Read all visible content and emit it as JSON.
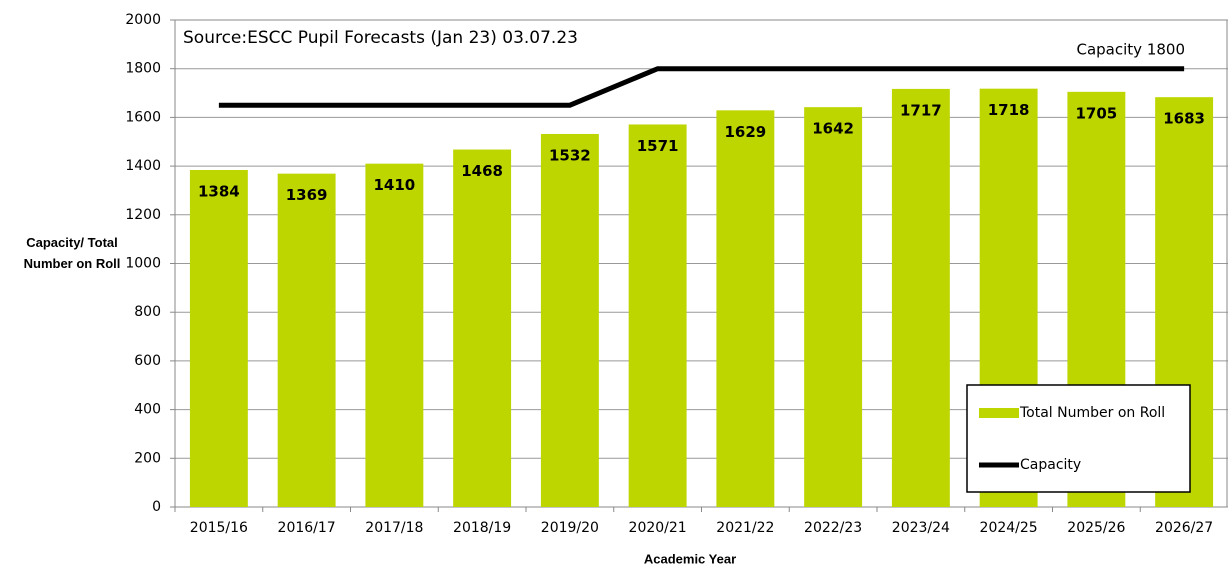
{
  "chart_data": {
    "type": "bar",
    "annotations": [
      "Source:ESCC Pupil Forecasts (Jan 23) 03.07.23",
      "Capacity 1800"
    ],
    "xlabel": "Academic Year",
    "ylabel": "Capacity/ Total Number on Roll",
    "categories": [
      "2015/16",
      "2016/17",
      "2017/18",
      "2018/19",
      "2019/20",
      "2020/21",
      "2021/22",
      "2022/23",
      "2023/24",
      "2024/25",
      "2025/26",
      "2026/27"
    ],
    "series": [
      {
        "name": "Total Number on Roll",
        "type": "bar",
        "color": "#bdd600",
        "values": [
          1384,
          1369,
          1410,
          1468,
          1532,
          1571,
          1629,
          1642,
          1717,
          1718,
          1705,
          1683
        ]
      },
      {
        "name": "Capacity",
        "type": "line",
        "color": "#000000",
        "values": [
          1650,
          1650,
          1650,
          1650,
          1650,
          1800,
          1800,
          1800,
          1800,
          1800,
          1800,
          1800
        ]
      }
    ],
    "ylim": [
      0,
      2000
    ],
    "yticks": [
      0,
      200,
      400,
      600,
      800,
      1000,
      1200,
      1400,
      1600,
      1800,
      2000
    ],
    "grid": true,
    "legend": "lower right"
  }
}
